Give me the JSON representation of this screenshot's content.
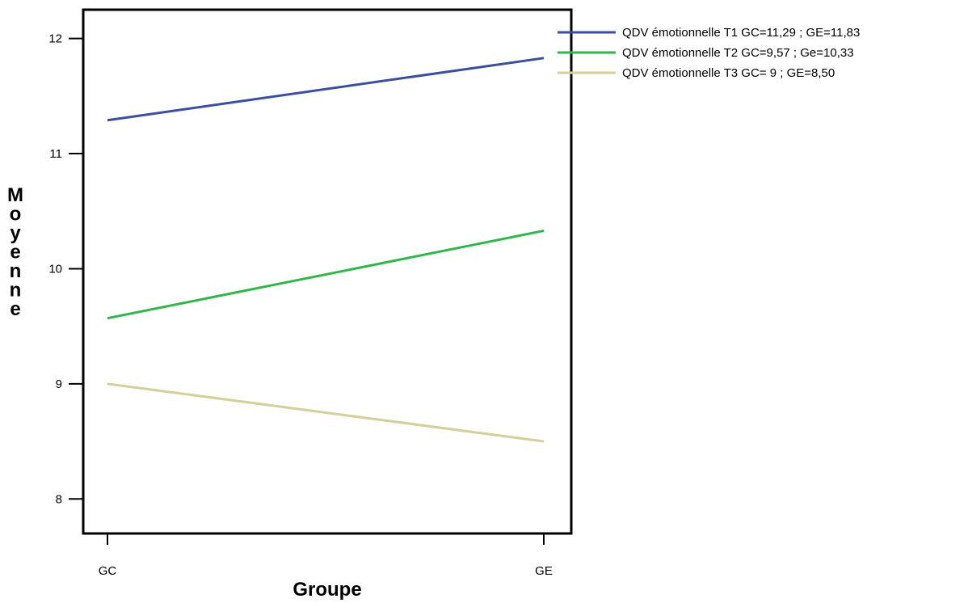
{
  "chart_data": {
    "type": "line",
    "title": "",
    "xlabel": "Groupe",
    "ylabel": "Moyenne",
    "categories": [
      "GC",
      "GE"
    ],
    "ylim": [
      7.7,
      12.25
    ],
    "yticks": [
      8,
      9,
      10,
      11,
      12
    ],
    "grid": false,
    "legend_position": "top-right",
    "series": [
      {
        "name": "QDV émotionnelle T1 GC=11,29 ; GE=11,83",
        "values": [
          11.29,
          11.83
        ],
        "color": "#3a4fa0"
      },
      {
        "name": "QDV émotionnelle T2 GC=9,57 ; Ge=10,33",
        "values": [
          9.57,
          10.33
        ],
        "color": "#2eb84a"
      },
      {
        "name": "QDV émotionnelle T3 GC= 9 ; GE=8,50",
        "values": [
          9.0,
          8.5
        ],
        "color": "#d5cf9a"
      }
    ]
  }
}
